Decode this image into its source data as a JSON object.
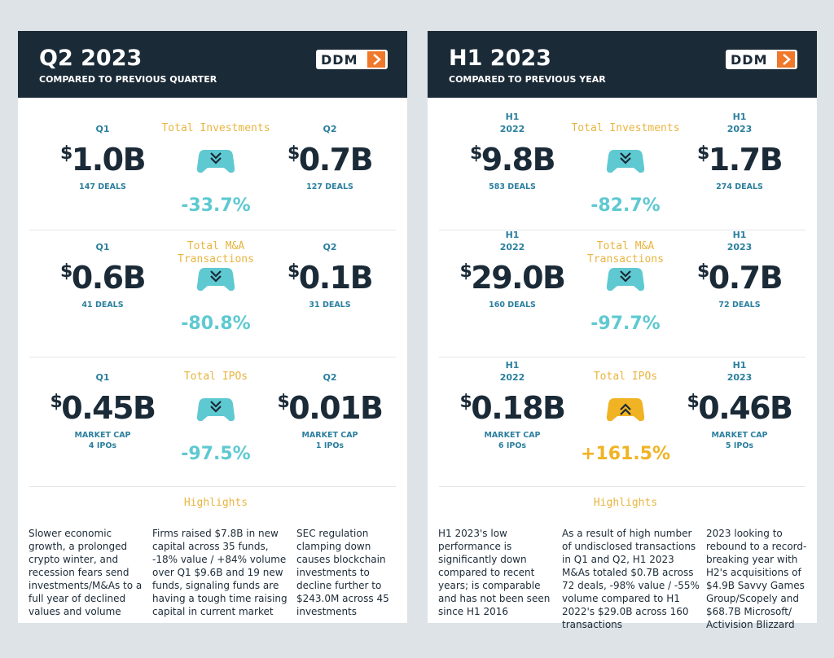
{
  "panels": [
    {
      "title": "Q2 2023",
      "subtitle": "COMPARED TO PREVIOUS QUARTER",
      "logo": "DDM",
      "sections": [
        {
          "label": "Total Investments",
          "left": {
            "period": "Q1",
            "value": "$1.0B",
            "detail": [
              "147 DEALS"
            ]
          },
          "right": {
            "period": "Q2",
            "value": "$0.7B",
            "detail": [
              "127 DEALS"
            ]
          },
          "change": "-33.7%",
          "color": "#5ec9d1",
          "trend": "down"
        },
        {
          "label": "Total M&A Transactions",
          "left": {
            "period": "Q1",
            "value": "$0.6B",
            "detail": [
              "41 DEALS"
            ]
          },
          "right": {
            "period": "Q2",
            "value": "$0.1B",
            "detail": [
              "31 DEALS"
            ]
          },
          "change": "-80.8%",
          "color": "#5ec9d1",
          "trend": "down"
        },
        {
          "label": "Total IPOs",
          "left": {
            "period": "Q1",
            "value": "$0.45B",
            "detail": [
              "MARKET CAP",
              "4 IPOs"
            ]
          },
          "right": {
            "period": "Q2",
            "value": "$0.01B",
            "detail": [
              "MARKET CAP",
              "1 IPOs"
            ]
          },
          "change": "-97.5%",
          "color": "#5ec9d1",
          "trend": "down"
        }
      ],
      "highlights_title": "Highlights",
      "highlights": [
        "Slower economic growth, a prolonged crypto winter, and recession fears send investments/M&As to a full year of declined values and volume",
        "Firms raised $7.8B in new capital across 35 funds, -18% value / +84% volume over Q1 $9.6B and 19 new funds, signaling funds are having a tough time raising capital in current market",
        "SEC regulation clamping down causes blockchain investments to decline further to $243.0M across 45 investments"
      ]
    },
    {
      "title": "H1 2023",
      "subtitle": "COMPARED TO PREVIOUS YEAR",
      "logo": "DDM",
      "sections": [
        {
          "label": "Total Investments",
          "left": {
            "period": "H1 2022",
            "value": "$9.8B",
            "detail": [
              "583 DEALS"
            ]
          },
          "right": {
            "period": "H1 2023",
            "value": "$1.7B",
            "detail": [
              "274 DEALS"
            ]
          },
          "change": "-82.7%",
          "color": "#5ec9d1",
          "trend": "down"
        },
        {
          "label": "Total M&A Transactions",
          "left": {
            "period": "H1 2022",
            "value": "$29.0B",
            "detail": [
              "160 DEALS"
            ]
          },
          "right": {
            "period": "H1 2023",
            "value": "$0.7B",
            "detail": [
              "72 DEALS"
            ]
          },
          "change": "-97.7%",
          "color": "#5ec9d1",
          "trend": "down"
        },
        {
          "label": "Total IPOs",
          "left": {
            "period": "H1 2022",
            "value": "$0.18B",
            "detail": [
              "MARKET CAP",
              "6 IPOs"
            ]
          },
          "right": {
            "period": "H1 2023",
            "value": "$0.46B",
            "detail": [
              "MARKET CAP",
              "5 IPOs"
            ]
          },
          "change": "+161.5%",
          "color": "#f0b323",
          "trend": "up"
        }
      ],
      "highlights_title": "Highlights",
      "highlights": [
        "H1 2023's low performance is significantly down compared to recent years; is comparable and has not been seen since H1 2016",
        "As a result of high number of undisclosed transactions in Q1 and Q2, H1 2023 M&As totaled $0.7B across 72 deals, -98% value / -55% volume compared to H1 2022's $29.0B across 160 transactions",
        "2023 looking to rebound to a record-breaking year with H2's acquisitions of $4.9B Savvy Games Group/Scopely and $68.7B Microsoft/ Activision Blizzard"
      ]
    }
  ]
}
